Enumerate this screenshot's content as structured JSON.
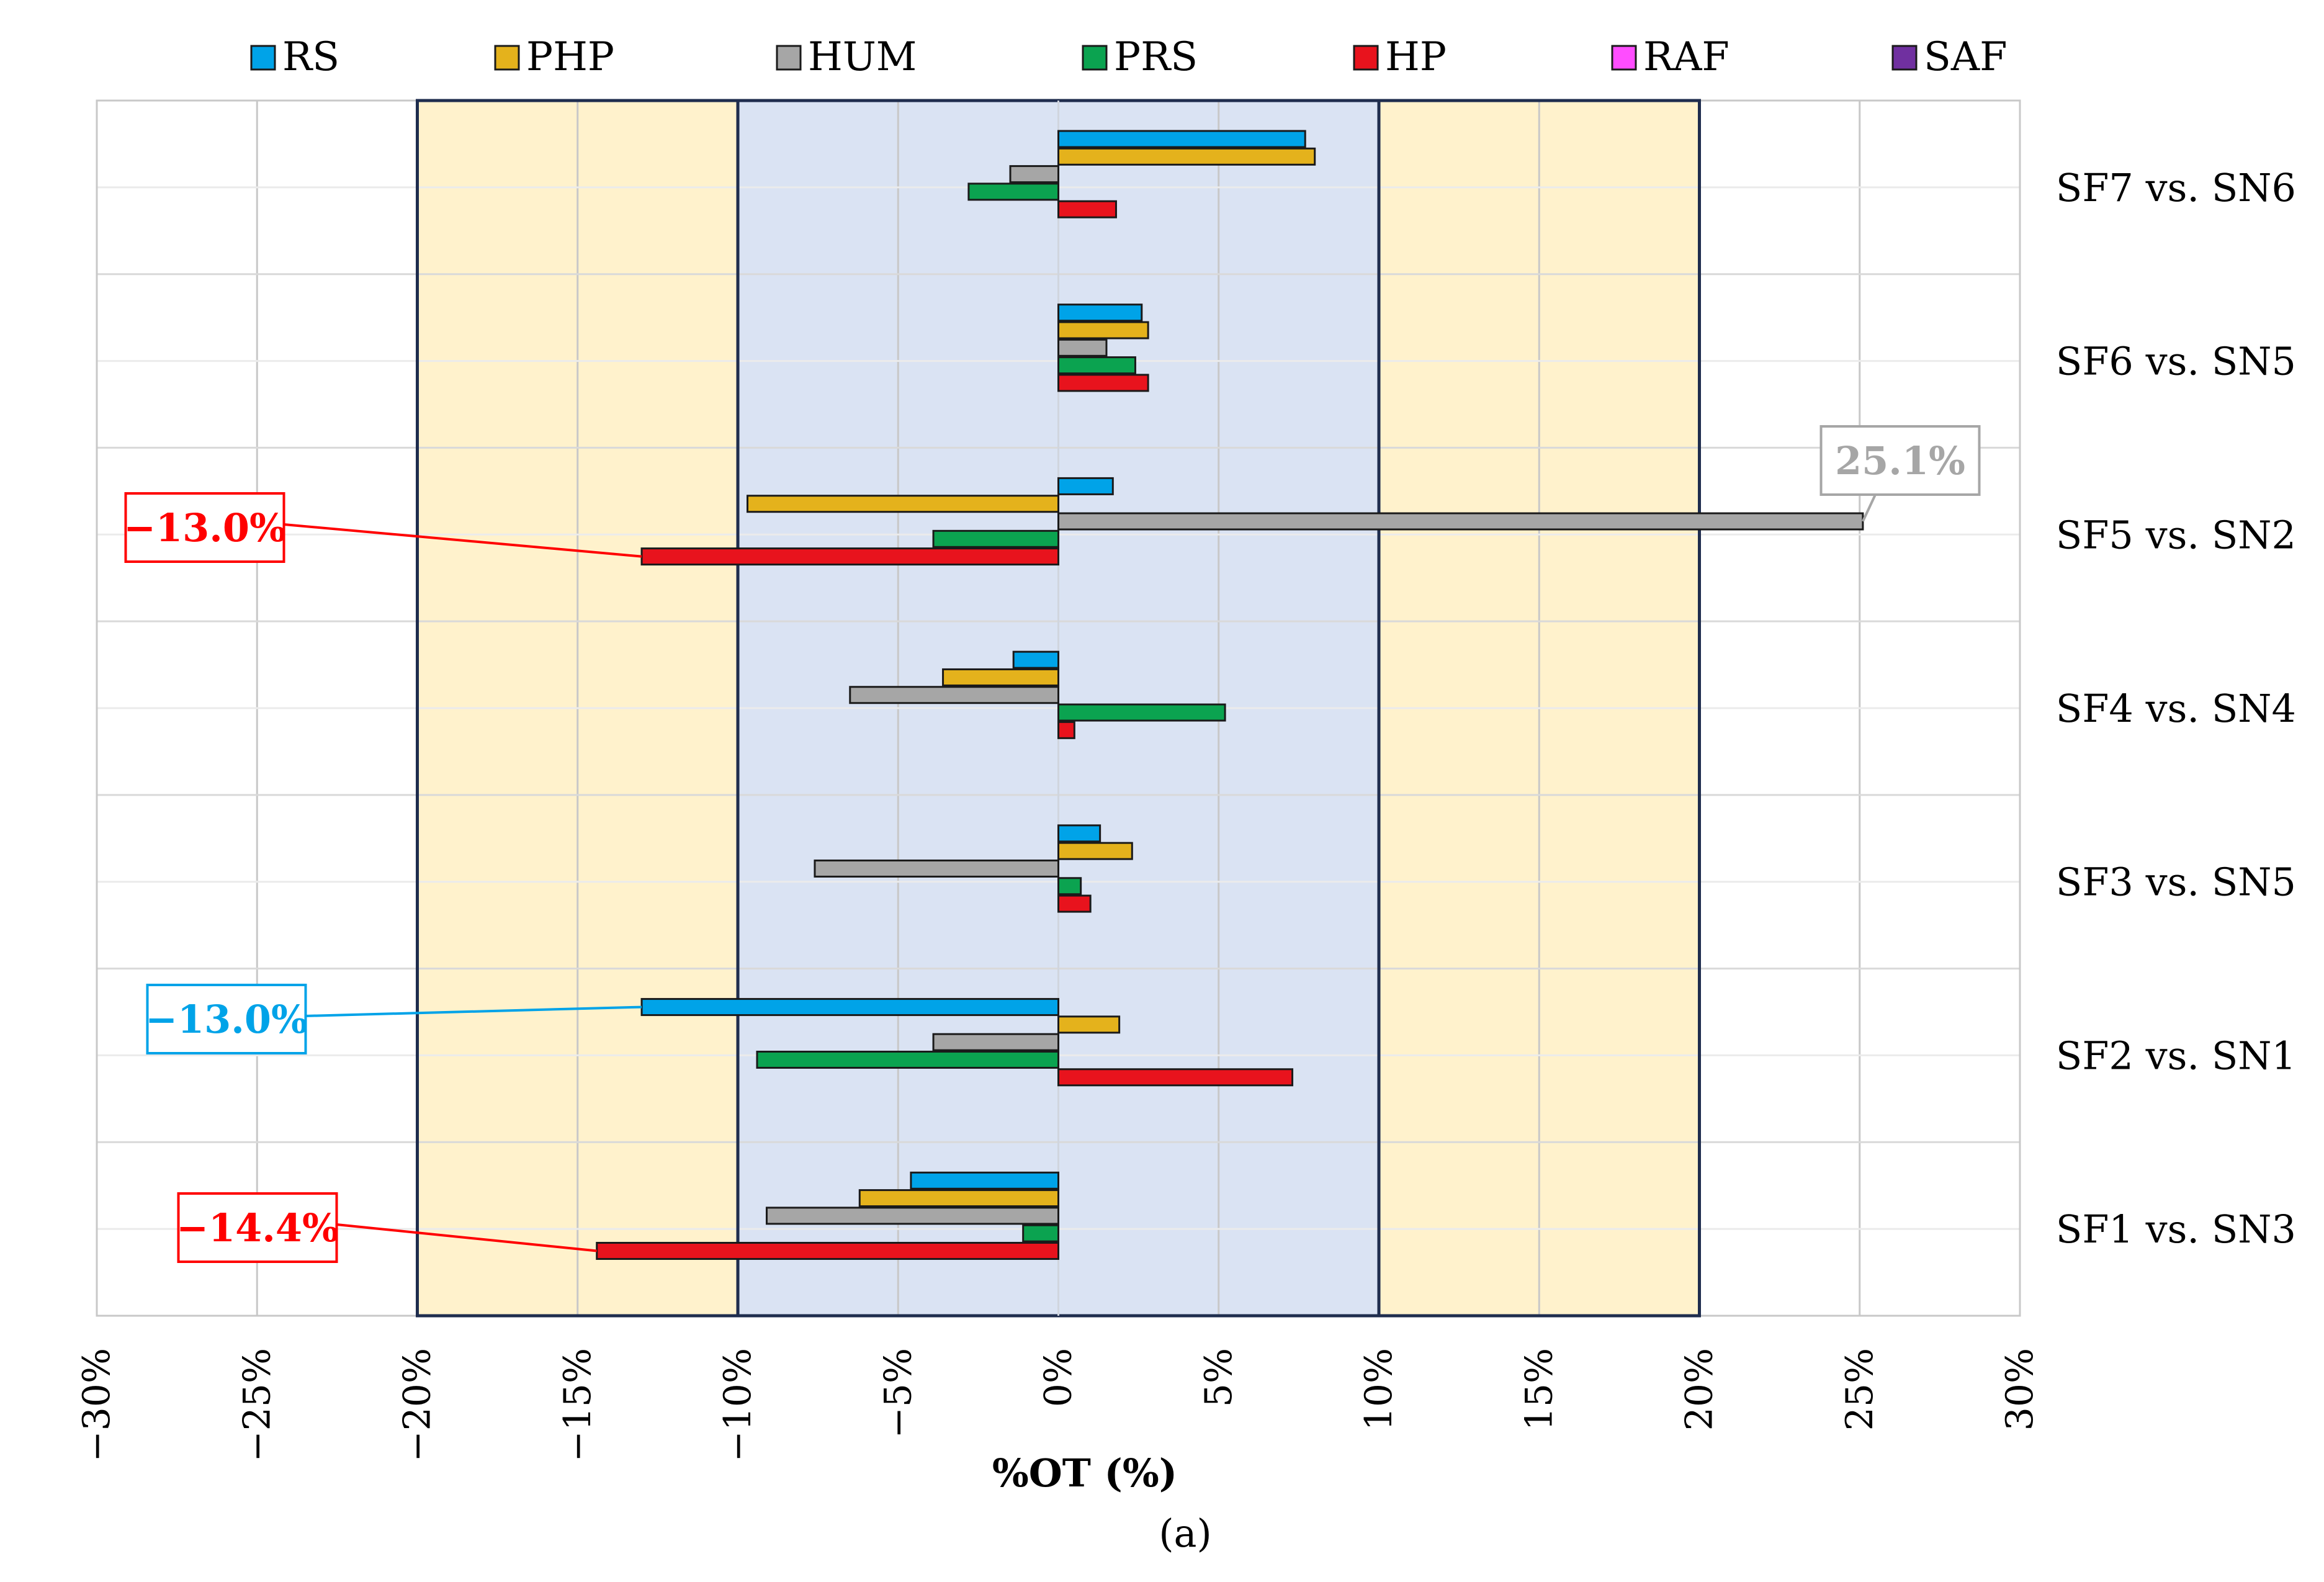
{
  "chart_data": {
    "type": "bar",
    "orientation": "horizontal",
    "categories": [
      "SF7 vs. SN6",
      "SF6 vs. SN5",
      "SF5 vs. SN2",
      "SF4 vs. SN4",
      "SF3 vs. SN5",
      "SF2 vs. SN1",
      "SF1 vs. SN3"
    ],
    "series": [
      {
        "name": "RS",
        "color": "#00A3E8",
        "values": [
          7.7,
          2.6,
          1.7,
          -1.4,
          1.3,
          -13.0,
          -4.6
        ]
      },
      {
        "name": "PHP",
        "color": "#E4B21C",
        "values": [
          8.0,
          2.8,
          -9.7,
          -3.6,
          2.3,
          1.9,
          -6.2
        ]
      },
      {
        "name": "HUM",
        "color": "#A6A6A6",
        "values": [
          -1.5,
          1.5,
          25.1,
          -6.5,
          -7.6,
          -3.9,
          -9.1
        ]
      },
      {
        "name": "PRS",
        "color": "#0BA350",
        "values": [
          -2.8,
          2.4,
          -3.9,
          5.2,
          0.7,
          -9.4,
          -1.1
        ]
      },
      {
        "name": "HP",
        "color": "#E8131D",
        "values": [
          1.8,
          2.8,
          -13.0,
          0.5,
          1.0,
          7.3,
          -14.4
        ]
      },
      {
        "name": "RAF",
        "color": "#FF4DFF",
        "values": [
          null,
          null,
          null,
          null,
          null,
          null,
          null
        ]
      },
      {
        "name": "SAF",
        "color": "#7030A0",
        "values": [
          null,
          null,
          null,
          null,
          null,
          null,
          null
        ]
      }
    ],
    "xlabel": "%OT (%)",
    "xlim": [
      -30,
      30
    ],
    "xticks": [
      -30,
      -25,
      -20,
      -15,
      -10,
      -5,
      0,
      5,
      10,
      15,
      20,
      25,
      30
    ],
    "xtick_labels": [
      "−30%",
      "−25%",
      "−20%",
      "−15%",
      "−10%",
      "−5%",
      "0%",
      "5%",
      "10%",
      "15%",
      "20%",
      "25%",
      "30%"
    ],
    "grid": true,
    "legend_position": "top",
    "bands": [
      {
        "from": -20,
        "to": -10,
        "color": "#FFF2CC"
      },
      {
        "from": -10,
        "to": 10,
        "color": "#DAE3F3"
      },
      {
        "from": 10,
        "to": 20,
        "color": "#FFF2CC"
      }
    ],
    "callouts": [
      {
        "text": "−13.0%",
        "color": "#FF0000",
        "category": "SF5 vs. SN2",
        "series": "HP"
      },
      {
        "text": "−13.0%",
        "color": "#00A3E8",
        "category": "SF2 vs. SN1",
        "series": "RS"
      },
      {
        "text": "−14.4%",
        "color": "#FF0000",
        "category": "SF1 vs. SN3",
        "series": "HP"
      },
      {
        "text": "25.1%",
        "color": "#A6A6A6",
        "category": "SF5 vs. SN2",
        "series": "HUM"
      }
    ]
  },
  "caption": "(a)"
}
